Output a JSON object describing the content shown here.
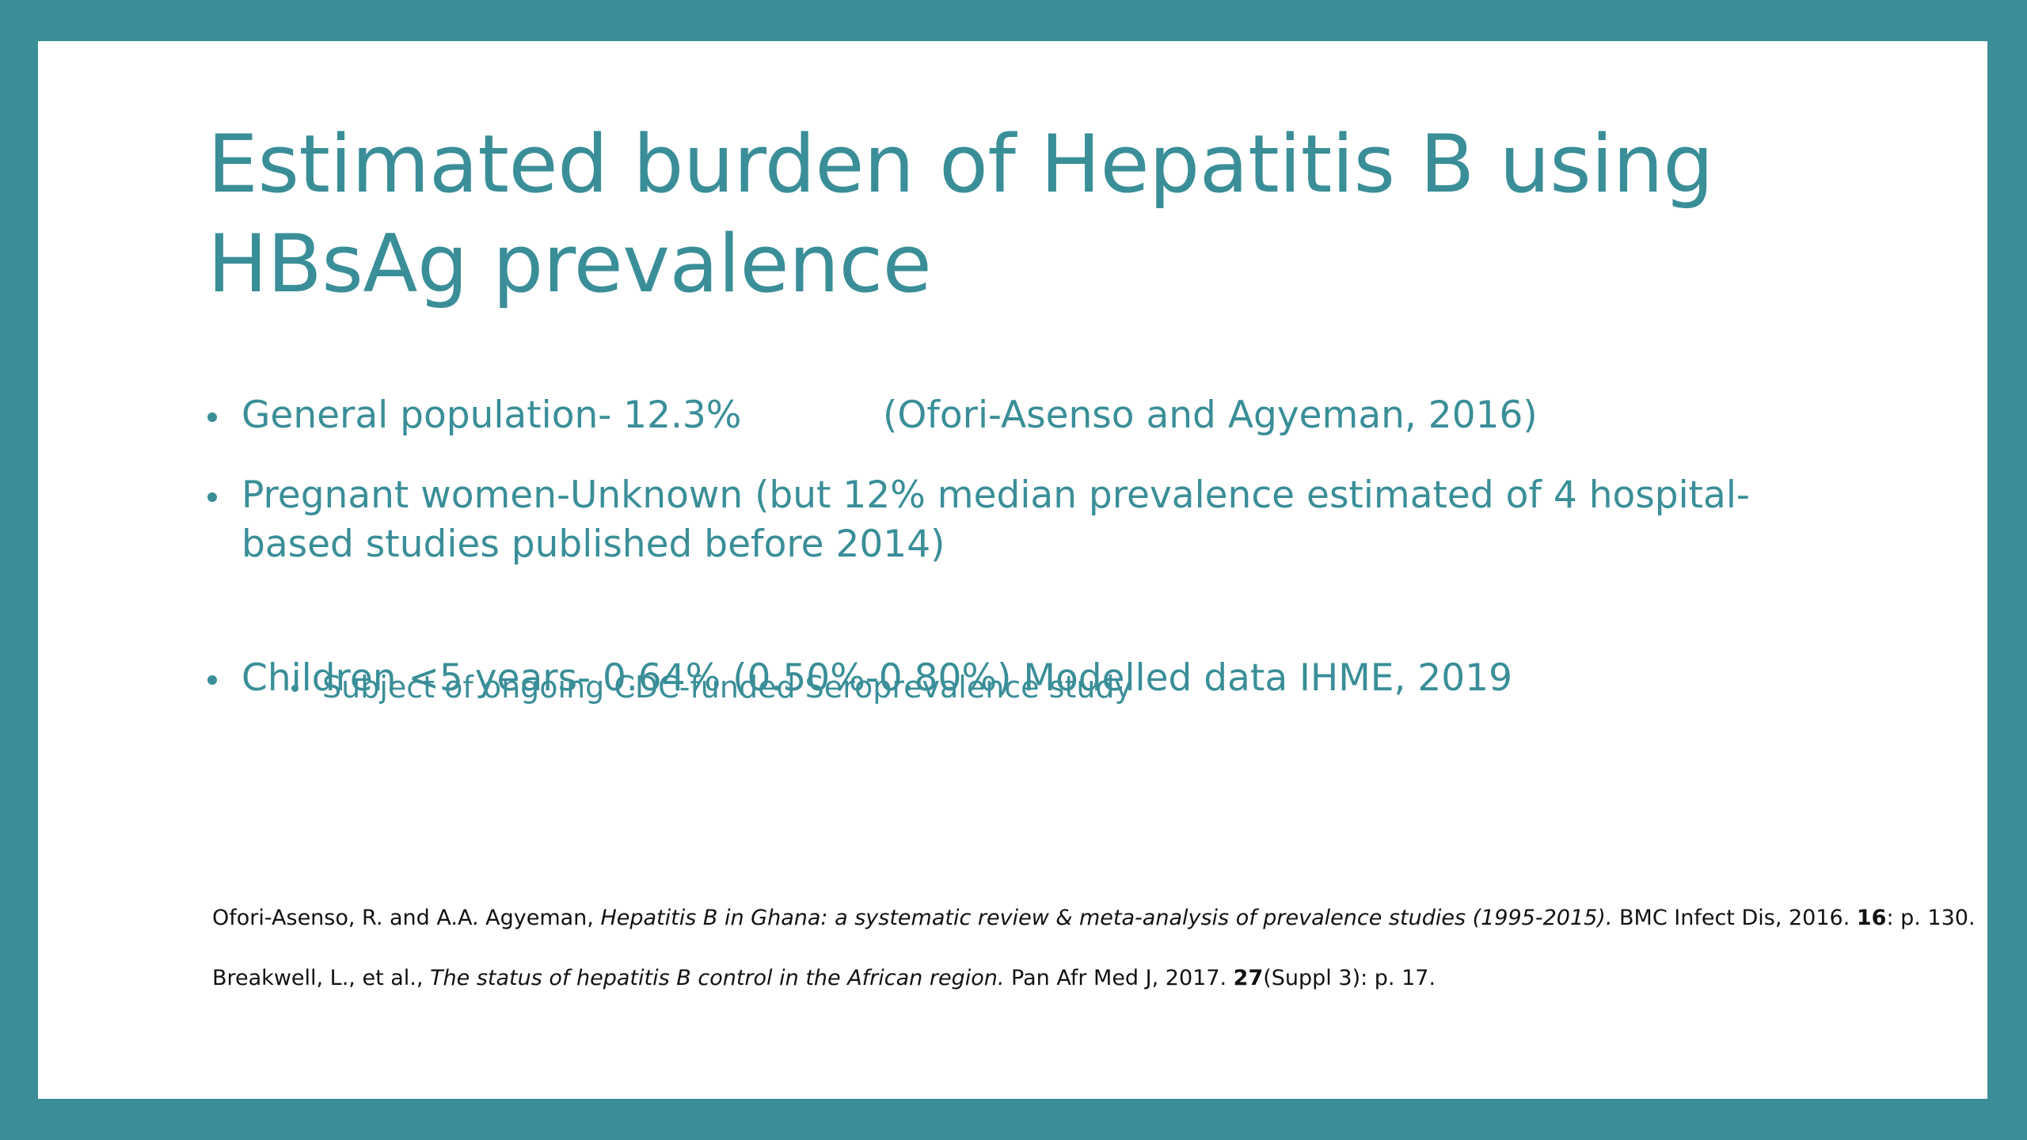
{
  "colors": {
    "frame": "#3a8e98",
    "title": "#3a8e98",
    "body_text": "#3a8e98",
    "references_text": "#111111",
    "slide_background": "#ffffff"
  },
  "slide": {
    "title_lines": [
      "Estimated burden of Hepatitis B using",
      "HBsAg prevalence"
    ],
    "bullets": [
      {
        "main": "General population- 12.3%",
        "source": "(Ofori-Asenso and Agyeman, 2016)"
      },
      {
        "line1": "Pregnant women-Unknown (but 12% median prevalence estimated of 4 hospital-",
        "line2": "based studies published before 2014)",
        "sub": "Subject of ongoing CDC-funded Seroprevalence study"
      },
      {
        "main": "Children <5 years- 0.64% (0.50%-0.80%)  Modelled data IHME, 2019"
      }
    ],
    "references": [
      {
        "authors": "Ofori-Asenso, R. and A.A. Agyeman, ",
        "title": "Hepatitis B in Ghana: a systematic review & meta-analysis of prevalence studies (1995-2015).",
        "journal": " BMC Infect Dis, 2016. ",
        "volume": "16",
        "pages": ": p. 130."
      },
      {
        "authors": "Breakwell, L., et al., ",
        "title": "The status of hepatitis B control in the African region.",
        "journal": " Pan Afr Med J, 2017. ",
        "volume": "27",
        "pages": "(Suppl 3): p. 17."
      }
    ]
  }
}
